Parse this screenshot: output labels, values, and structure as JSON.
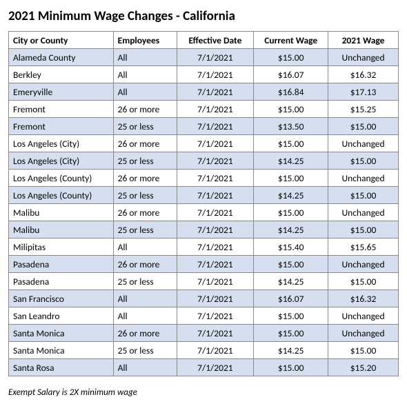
{
  "title": "2021 Minimum Wage Changes - California",
  "columns": [
    "City or County",
    "Employees",
    "Effective Date",
    "Current Wage",
    "2021 Wage"
  ],
  "column_align": [
    "left",
    "left",
    "center",
    "center",
    "center"
  ],
  "cell_align": [
    "left",
    "left",
    "center",
    "center",
    "center"
  ],
  "row_colors": {
    "shaded": "#d5dff0",
    "plain": "#ffffff"
  },
  "border_color": "#888888",
  "title_fontsize": 19,
  "cell_fontsize": 13.5,
  "rows": [
    {
      "shaded": true,
      "cells": [
        "Alameda County",
        "All",
        "7/1/2021",
        "$15.00",
        "Unchanged"
      ]
    },
    {
      "shaded": false,
      "cells": [
        "Berkley",
        "All",
        "7/1/2021",
        "$16.07",
        "$16.32"
      ]
    },
    {
      "shaded": true,
      "cells": [
        "Emeryville",
        "All",
        "7/1/2021",
        "$16.84",
        "$17.13"
      ]
    },
    {
      "shaded": false,
      "cells": [
        "Fremont",
        "26 or more",
        "7/1/2021",
        "$15.00",
        "$15.25"
      ]
    },
    {
      "shaded": true,
      "cells": [
        "Fremont",
        "25 or less",
        "7/1/2021",
        "$13.50",
        "$15.00"
      ]
    },
    {
      "shaded": false,
      "cells": [
        "Los Angeles (City)",
        "26 or more",
        "7/1/2021",
        "$15.00",
        "Unchanged"
      ]
    },
    {
      "shaded": true,
      "cells": [
        "Los Angeles (City)",
        "25 or less",
        "7/1/2021",
        "$14.25",
        "$15.00"
      ]
    },
    {
      "shaded": false,
      "cells": [
        "Los Angeles (County)",
        "26 or more",
        "7/1/2021",
        "$15.00",
        "Unchanged"
      ]
    },
    {
      "shaded": true,
      "cells": [
        "Los Angeles (County)",
        "25 or less",
        "7/1/2021",
        "$14.25",
        "$15.00"
      ]
    },
    {
      "shaded": false,
      "cells": [
        "Malibu",
        "26 or more",
        "7/1/2021",
        "$15.00",
        "Unchanged"
      ]
    },
    {
      "shaded": true,
      "cells": [
        "Malibu",
        "25 or less",
        "7/1/2021",
        "$14.25",
        "$15.00"
      ]
    },
    {
      "shaded": false,
      "cells": [
        "Milipitas",
        "All",
        "7/1/2021",
        "$15.40",
        "$15.65"
      ]
    },
    {
      "shaded": true,
      "cells": [
        "Pasadena",
        "26 or more",
        "7/1/2021",
        "$15.00",
        "Unchanged"
      ]
    },
    {
      "shaded": false,
      "cells": [
        "Pasadena",
        "25 or less",
        "7/1/2021",
        "$14.25",
        "$15.00"
      ]
    },
    {
      "shaded": true,
      "cells": [
        "San Francisco",
        "All",
        "7/1/2021",
        "$16.07",
        "$16.32"
      ]
    },
    {
      "shaded": false,
      "cells": [
        "San Leandro",
        "All",
        "7/1/2021",
        "$15.00",
        "Unchanged"
      ]
    },
    {
      "shaded": true,
      "cells": [
        "Santa Monica",
        "26 or more",
        "7/1/2021",
        "$15.00",
        "Unchanged"
      ]
    },
    {
      "shaded": false,
      "cells": [
        "Santa Monica",
        "25 or less",
        "7/1/2021",
        "$14.25",
        "$15.00"
      ]
    },
    {
      "shaded": true,
      "cells": [
        "Santa Rosa",
        "All",
        "7/1/2021",
        "$15.00",
        "$15.20"
      ]
    }
  ],
  "footnote": "Exempt Salary is 2X minimum wage"
}
